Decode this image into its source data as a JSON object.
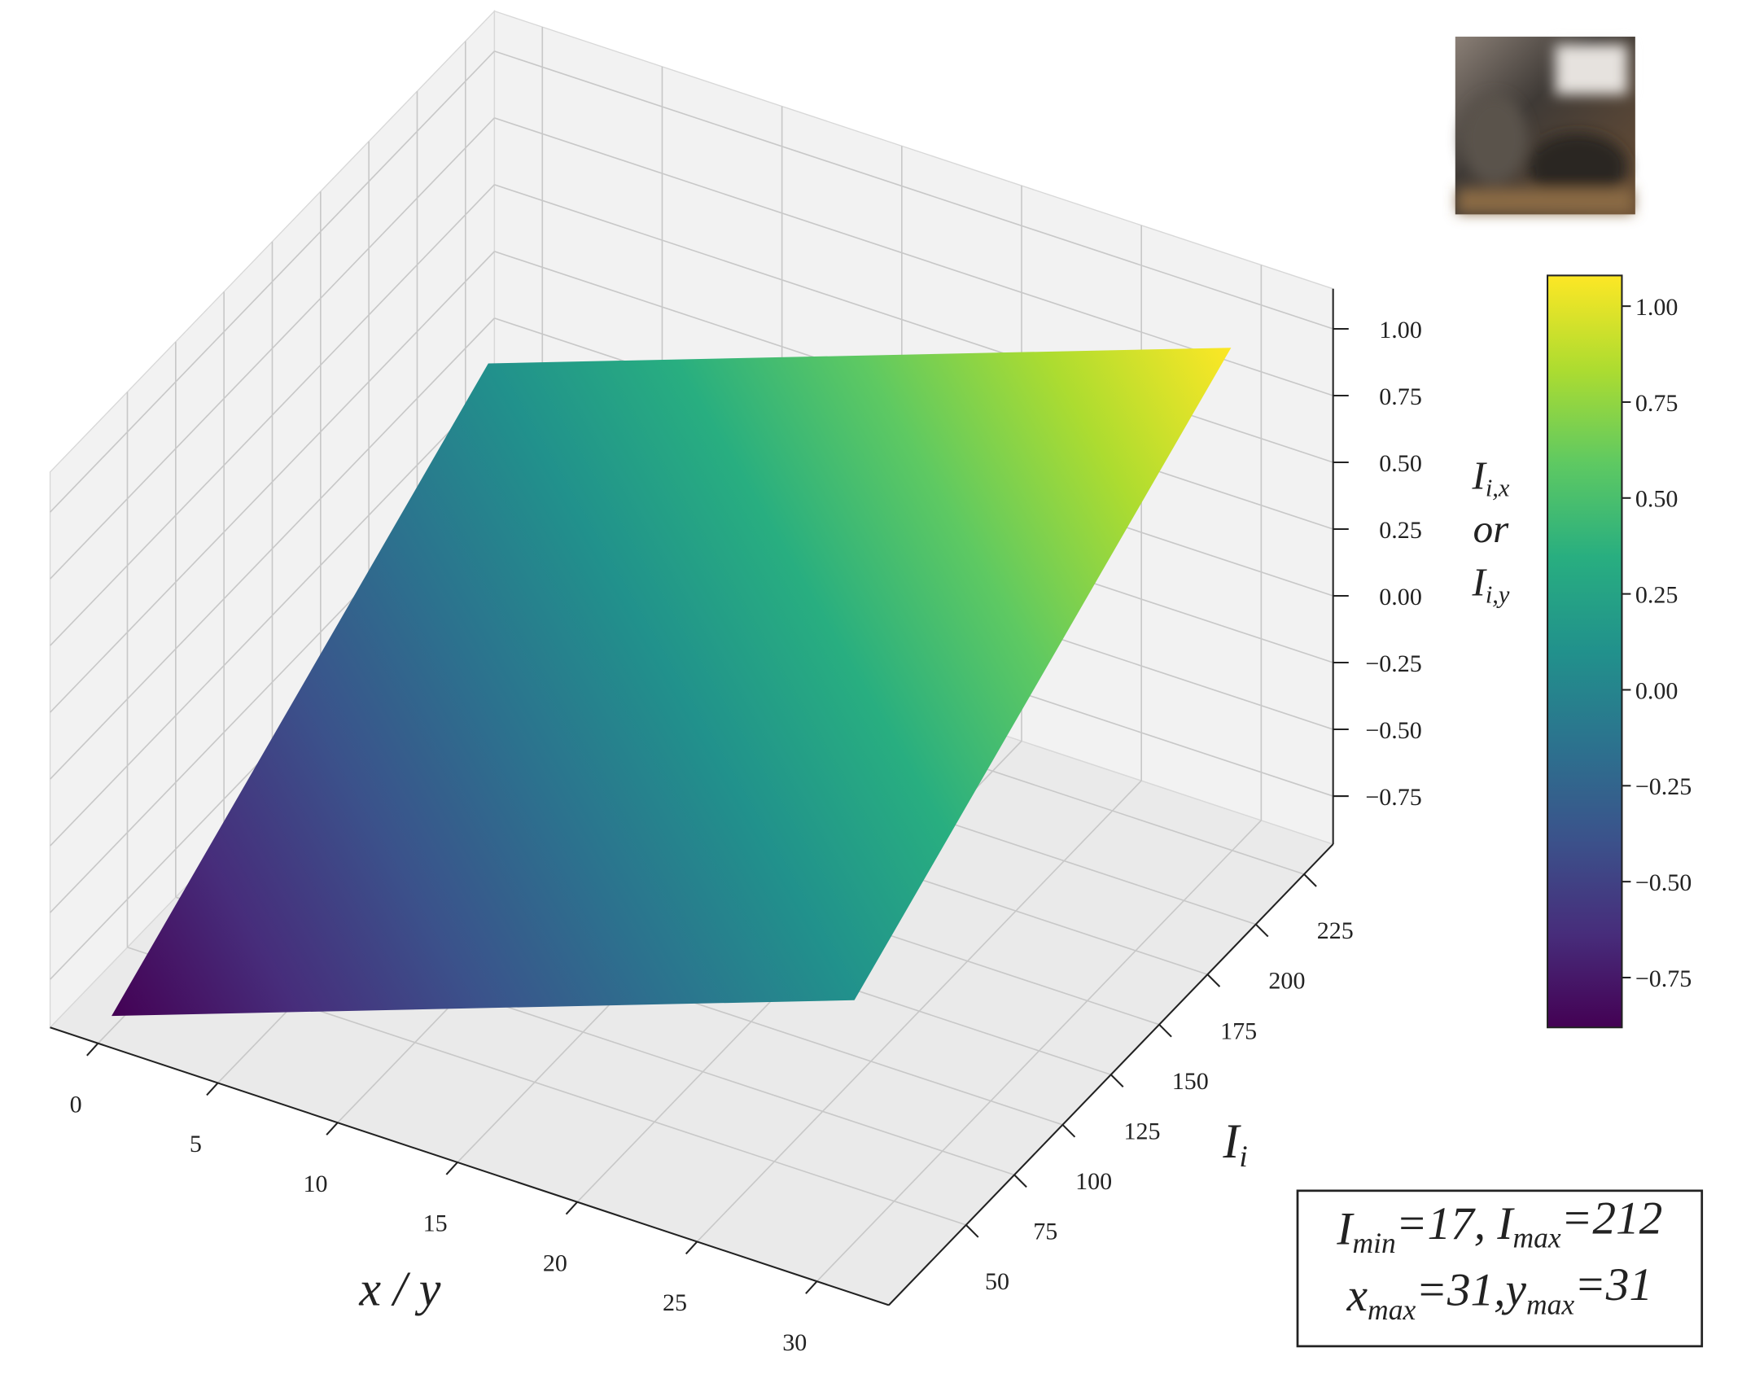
{
  "chart_data": {
    "type": "surface",
    "xlabel": [
      {
        "text": "x / y"
      }
    ],
    "ylabel": [
      {
        "text": "I"
      },
      {
        "text": "i",
        "sub": true
      }
    ],
    "zlabel": [
      [
        {
          "text": "I"
        },
        {
          "text": "i,x",
          "sub": true
        }
      ],
      [
        {
          "text": "or"
        }
      ],
      [
        {
          "text": "I"
        },
        {
          "text": "i,y",
          "sub": true
        }
      ]
    ],
    "xlim": [
      -2,
      33
    ],
    "xticks": [
      0,
      5,
      10,
      15,
      20,
      25,
      30
    ],
    "ylim": [
      10,
      240
    ],
    "yticks": [
      50,
      75,
      100,
      125,
      150,
      175,
      200,
      225
    ],
    "zlim": [
      -0.93,
      1.15
    ],
    "zticks": [
      {
        "value": -0.75,
        "label": "−0.75"
      },
      {
        "value": -0.5,
        "label": "−0.50"
      },
      {
        "value": -0.25,
        "label": "−0.25"
      },
      {
        "value": 0,
        "label": "0.00"
      },
      {
        "value": 0.25,
        "label": "0.25"
      },
      {
        "value": 0.5,
        "label": "0.50"
      },
      {
        "value": 0.75,
        "label": "0.75"
      },
      {
        "value": 1,
        "label": "1.00"
      }
    ],
    "surface": {
      "x": [
        0,
        31
      ],
      "y": [
        17,
        212
      ],
      "z": [
        [
          -0.88,
          0.1
        ],
        [
          0.1,
          1.08
        ]
      ]
    },
    "colormap": [
      "#440154",
      "#472d7b",
      "#3b528b",
      "#2c728e",
      "#21918c",
      "#28ae80",
      "#5ec962",
      "#addc30",
      "#fde725"
    ],
    "colorbar_ticks": [
      {
        "value": -0.75,
        "label": "−0.75"
      },
      {
        "value": -0.5,
        "label": "−0.50"
      },
      {
        "value": -0.25,
        "label": "−0.25"
      },
      {
        "value": 0,
        "label": "0.00"
      },
      {
        "value": 0.25,
        "label": "0.25"
      },
      {
        "value": 0.5,
        "label": "0.50"
      },
      {
        "value": 0.75,
        "label": "0.75"
      },
      {
        "value": 1,
        "label": "1.00"
      }
    ],
    "annotation": [
      [
        {
          "text": "I"
        },
        {
          "text": "min",
          "sub": true
        },
        {
          "text": "=17, I"
        },
        {
          "text": "max",
          "sub": true
        },
        {
          "text": "=212"
        }
      ],
      [
        {
          "text": "x"
        },
        {
          "text": "max",
          "sub": true
        },
        {
          "text": "=31,y"
        },
        {
          "text": "max",
          "sub": true
        },
        {
          "text": "=31"
        }
      ]
    ]
  }
}
